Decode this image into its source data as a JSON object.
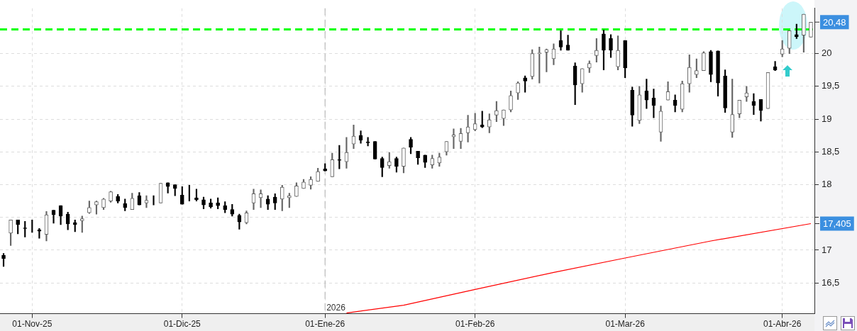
{
  "chart_data": {
    "type": "candlestick",
    "colors": [
      "#000000",
      "#666666",
      "#000000",
      "#000000",
      "#000000",
      "#000000",
      "#666666",
      "#000000",
      "#000000",
      "#000000",
      "#000000",
      "#666666",
      "#666666",
      "#666666",
      "#666666",
      "#666666",
      "#000000",
      "#000000",
      "#666666",
      "#000000",
      "#666666",
      "#000000",
      "#666666",
      "#000000",
      "#000000",
      "#000000",
      "#000000",
      "#000000",
      "#000000",
      "#000000",
      "#000000",
      "#000000",
      "#000000",
      "#000000",
      "#666666",
      "#666666",
      "#666666",
      "#000000",
      "#000000",
      "#666666",
      "#666666",
      "#666666",
      "#666666",
      "#666666",
      "#666666",
      "#000000",
      "#666666",
      "#000000",
      "#666666",
      "#666666",
      "#000000",
      "#000000",
      "#000000",
      "#000000",
      "#666666",
      "#000000",
      "#666666",
      "#000000",
      "#000000",
      "#000000",
      "#666666",
      "#666666",
      "#666666",
      "#666666",
      "#666666",
      "#666666",
      "#666666",
      "#000000",
      "#666666",
      "#666666",
      "#666666",
      "#666666",
      "#666666",
      "#000000",
      "#666666",
      "#666666",
      "#666666",
      "#666666",
      "#000000",
      "#000000",
      "#000000",
      "#666666",
      "#666666",
      "#666666",
      "#000000",
      "#000000",
      "#666666",
      "#000000",
      "#000000",
      "#666666",
      "#000000",
      "#000000",
      "#666666",
      "#666666",
      "#000000",
      "#666666",
      "#666666",
      "#666666",
      "#666666",
      "#000000",
      "#000000",
      "#000000",
      "#666666",
      "#666666",
      "#666666",
      "#000000",
      "#000000",
      "#666666",
      "#000000",
      "#666666",
      "#666666",
      "#000000",
      "#666666",
      "#666666"
    ],
    "categories": [
      null,
      null,
      null,
      null,
      "01-Nov-25",
      null,
      null,
      null,
      null,
      null,
      null,
      null,
      null,
      null,
      null,
      null,
      null,
      null,
      null,
      null,
      null,
      null,
      null,
      null,
      null,
      "01-Dic-25",
      null,
      null,
      null,
      null,
      null,
      null,
      null,
      null,
      null,
      null,
      null,
      null,
      null,
      null,
      null,
      null,
      null,
      null,
      null,
      "01-Ene-26",
      null,
      null,
      null,
      null,
      null,
      null,
      null,
      null,
      null,
      null,
      null,
      null,
      null,
      null,
      null,
      null,
      null,
      null,
      null,
      null,
      "01-Feb-26",
      null,
      null,
      null,
      null,
      null,
      null,
      null,
      null,
      null,
      null,
      null,
      null,
      null,
      null,
      null,
      null,
      null,
      null,
      null,
      null,
      "01-Mar-26",
      null,
      null,
      null,
      null,
      null,
      null,
      null,
      null,
      null,
      null,
      null,
      null,
      null,
      null,
      null,
      null,
      null,
      null,
      null,
      null,
      null,
      "01-Abr-26",
      null,
      null,
      null,
      null
    ],
    "ohlc": [
      [
        16.92,
        16.95,
        16.75,
        16.87
      ],
      [
        17.26,
        17.46,
        17.07,
        17.46
      ],
      [
        17.46,
        17.46,
        17.25,
        17.39
      ],
      [
        17.34,
        17.44,
        17.2,
        17.33
      ],
      [
        17.33,
        17.46,
        17.27,
        17.33
      ],
      [
        17.31,
        17.33,
        17.18,
        17.29
      ],
      [
        17.24,
        17.59,
        17.14,
        17.54
      ],
      [
        17.61,
        17.61,
        17.41,
        17.54
      ],
      [
        17.68,
        17.68,
        17.39,
        17.52
      ],
      [
        17.55,
        17.58,
        17.31,
        17.4
      ],
      [
        17.42,
        17.46,
        17.28,
        17.39
      ],
      [
        17.45,
        17.52,
        17.27,
        17.48
      ],
      [
        17.57,
        17.75,
        17.56,
        17.65
      ],
      [
        17.69,
        17.75,
        17.55,
        17.74
      ],
      [
        17.65,
        17.79,
        17.62,
        17.78
      ],
      [
        17.75,
        17.9,
        17.73,
        17.89
      ],
      [
        17.82,
        17.85,
        17.72,
        17.75
      ],
      [
        17.71,
        17.78,
        17.6,
        17.65
      ],
      [
        17.62,
        17.87,
        17.62,
        17.79
      ],
      [
        17.83,
        17.88,
        17.69,
        17.69
      ],
      [
        17.72,
        17.83,
        17.65,
        17.76
      ],
      [
        17.78,
        17.83,
        17.69,
        17.78
      ],
      [
        17.72,
        18.02,
        17.72,
        18.02
      ],
      [
        18.03,
        18.03,
        17.87,
        17.97
      ],
      [
        18.0,
        18.0,
        17.83,
        17.94
      ],
      [
        17.84,
        17.97,
        17.7,
        17.7
      ],
      [
        17.83,
        17.99,
        17.75,
        17.83
      ],
      [
        17.8,
        17.93,
        17.75,
        17.77
      ],
      [
        17.77,
        17.81,
        17.63,
        17.69
      ],
      [
        17.72,
        17.78,
        17.64,
        17.66
      ],
      [
        17.72,
        17.8,
        17.63,
        17.68
      ],
      [
        17.68,
        17.74,
        17.57,
        17.62
      ],
      [
        17.62,
        17.7,
        17.52,
        17.55
      ],
      [
        17.53,
        17.55,
        17.32,
        17.43
      ],
      [
        17.42,
        17.6,
        17.4,
        17.57
      ],
      [
        17.72,
        17.93,
        17.62,
        17.86
      ],
      [
        17.8,
        17.92,
        17.65,
        17.86
      ],
      [
        17.78,
        17.83,
        17.62,
        17.7
      ],
      [
        17.81,
        17.86,
        17.62,
        17.72
      ],
      [
        17.78,
        17.99,
        17.6,
        17.96
      ],
      [
        17.8,
        17.87,
        17.65,
        17.83
      ],
      [
        17.82,
        18.03,
        17.82,
        17.98
      ],
      [
        17.94,
        18.08,
        17.94,
        18.04
      ],
      [
        17.99,
        18.12,
        17.93,
        18.08
      ],
      [
        18.05,
        18.25,
        18.05,
        18.2
      ],
      [
        18.24,
        18.32,
        18.21,
        18.21
      ],
      [
        18.12,
        18.48,
        18.12,
        18.38
      ],
      [
        18.38,
        18.6,
        18.24,
        18.37
      ],
      [
        18.35,
        18.72,
        18.25,
        18.49
      ],
      [
        18.62,
        18.91,
        18.55,
        18.74
      ],
      [
        18.75,
        18.82,
        18.63,
        18.68
      ],
      [
        18.65,
        18.72,
        18.59,
        18.64
      ],
      [
        18.66,
        18.66,
        18.39,
        18.39
      ],
      [
        18.4,
        18.42,
        18.12,
        18.26
      ],
      [
        18.29,
        18.49,
        18.25,
        18.35
      ],
      [
        18.4,
        18.42,
        18.19,
        18.28
      ],
      [
        18.28,
        18.56,
        18.18,
        18.56
      ],
      [
        18.69,
        18.72,
        18.47,
        18.57
      ],
      [
        18.51,
        18.51,
        18.31,
        18.41
      ],
      [
        18.45,
        18.45,
        18.26,
        18.34
      ],
      [
        18.3,
        18.45,
        18.25,
        18.4
      ],
      [
        18.33,
        18.48,
        18.28,
        18.42
      ],
      [
        18.5,
        18.66,
        18.45,
        18.66
      ],
      [
        18.73,
        18.85,
        18.55,
        18.76
      ],
      [
        18.66,
        18.86,
        18.55,
        18.78
      ],
      [
        18.79,
        19.06,
        18.65,
        18.88
      ],
      [
        18.84,
        19.09,
        18.82,
        18.93
      ],
      [
        18.91,
        19.12,
        18.87,
        18.88
      ],
      [
        18.88,
        19.08,
        18.79,
        18.99
      ],
      [
        19.06,
        19.27,
        18.96,
        19.13
      ],
      [
        19.01,
        19.14,
        18.9,
        19.14
      ],
      [
        19.14,
        19.43,
        19.11,
        19.36
      ],
      [
        19.4,
        19.57,
        19.3,
        19.55
      ],
      [
        19.63,
        19.66,
        19.41,
        19.58
      ],
      [
        19.65,
        20.06,
        19.61,
        20.0
      ],
      [
        20.0,
        20.1,
        19.55,
        20.01
      ],
      [
        20.02,
        20.07,
        19.72,
        20.06
      ],
      [
        19.92,
        20.15,
        19.83,
        20.07
      ],
      [
        20.2,
        20.35,
        20.05,
        20.1
      ],
      [
        20.13,
        20.28,
        20.05,
        20.05
      ],
      [
        19.81,
        19.86,
        19.22,
        19.52
      ],
      [
        19.54,
        19.77,
        19.41,
        19.77
      ],
      [
        19.78,
        19.89,
        19.71,
        19.85
      ],
      [
        19.97,
        20.23,
        19.87,
        20.05
      ],
      [
        20.3,
        20.36,
        19.75,
        20.05
      ],
      [
        20.23,
        20.29,
        19.94,
        20.05
      ],
      [
        19.8,
        20.27,
        19.75,
        20.05
      ],
      [
        20.2,
        20.2,
        19.63,
        19.78
      ],
      [
        19.44,
        19.49,
        18.89,
        19.06
      ],
      [
        18.98,
        19.5,
        18.93,
        19.37
      ],
      [
        19.43,
        19.61,
        19.16,
        19.29
      ],
      [
        19.32,
        19.46,
        19.02,
        19.21
      ],
      [
        18.8,
        19.2,
        18.66,
        19.12
      ],
      [
        19.29,
        19.57,
        19.29,
        19.42
      ],
      [
        19.29,
        19.37,
        19.11,
        19.21
      ],
      [
        19.15,
        19.58,
        19.11,
        19.54
      ],
      [
        19.54,
        19.98,
        19.41,
        19.79
      ],
      [
        19.68,
        19.92,
        19.63,
        19.74
      ],
      [
        19.74,
        20.03,
        19.74,
        20.01
      ],
      [
        20.03,
        20.05,
        19.57,
        19.68
      ],
      [
        20.04,
        20.04,
        19.35,
        19.55
      ],
      [
        19.66,
        19.75,
        19.1,
        19.17
      ],
      [
        18.8,
        19.61,
        18.72,
        19.07
      ],
      [
        19.08,
        19.29,
        19.02,
        19.29
      ],
      [
        19.34,
        19.5,
        19.27,
        19.4
      ],
      [
        19.27,
        19.39,
        19.07,
        19.21
      ],
      [
        19.3,
        19.3,
        18.97,
        19.13
      ],
      [
        19.16,
        19.71,
        19.16,
        19.71
      ],
      [
        19.8,
        19.88,
        19.74,
        19.75
      ],
      [
        19.99,
        20.2,
        19.95,
        20.07
      ],
      [
        20.08,
        20.35,
        20.0,
        20.35
      ],
      [
        20.29,
        20.45,
        20.23,
        20.26
      ],
      [
        20.28,
        20.6,
        20.02,
        20.6
      ],
      [
        20.25,
        20.48,
        20.25,
        20.48
      ]
    ],
    "series": [
      {
        "type": "line",
        "color": "#ff0000",
        "values": [
          null,
          null,
          null,
          null,
          null,
          null,
          null,
          null,
          null,
          null,
          null,
          null,
          null,
          null,
          null,
          null,
          null,
          null,
          null,
          null,
          null,
          null,
          null,
          null,
          null,
          null,
          null,
          null,
          null,
          null,
          null,
          null,
          null,
          null,
          null,
          null,
          null,
          null,
          null,
          null,
          null,
          null,
          null,
          null,
          null,
          null,
          null,
          null,
          16.04,
          null,
          null,
          null,
          null,
          null,
          null,
          null,
          16.16,
          null,
          null,
          null,
          null,
          null,
          null,
          null,
          null,
          null,
          16.4,
          null,
          null,
          null,
          null,
          null,
          null,
          null,
          null,
          null,
          null,
          16.66,
          null,
          null,
          null,
          null,
          null,
          null,
          null,
          null,
          null,
          16.88,
          null,
          null,
          null,
          null,
          null,
          null,
          null,
          null,
          null,
          null,
          null,
          17.14,
          null,
          null,
          null,
          null,
          null,
          null,
          null,
          null,
          null,
          null,
          null,
          null,
          null,
          17.405
        ]
      }
    ],
    "ylim": [
      16.03,
      20.69
    ],
    "yticks": [
      {
        "value": 16.5,
        "label": "16,5"
      },
      17,
      {
        "value": 17.5,
        "label": null
      },
      18,
      {
        "value": 18.5,
        "label": "18,5"
      },
      19,
      {
        "value": 19.5,
        "label": "19,5"
      },
      20
    ],
    "grid": true,
    "ref_lines": [
      {
        "axis": "y",
        "value": 20.37,
        "color": "#00ff00",
        "line_style": "dashed"
      },
      {
        "axis": "x",
        "value": "01-Ene-26",
        "label": "2026",
        "color": "#bbbbbb",
        "line_style": "dashed"
      }
    ],
    "annotations": [
      "20,48",
      "17,405"
    ]
  }
}
